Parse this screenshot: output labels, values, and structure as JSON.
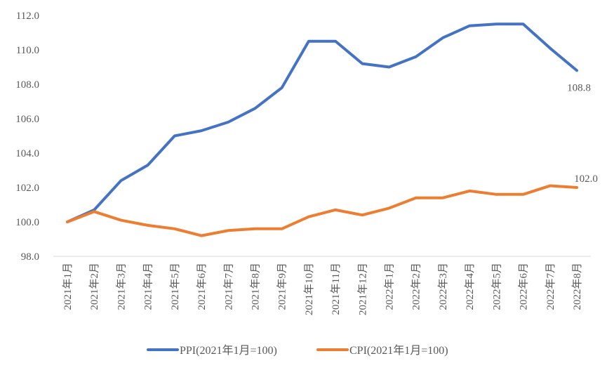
{
  "chart_data": {
    "type": "line",
    "title": "",
    "xlabel": "",
    "ylabel": "",
    "ylim": [
      98,
      112
    ],
    "ytick_step": 2,
    "ytick_labels": [
      "98.0",
      "100.0",
      "102.0",
      "104.0",
      "106.0",
      "108.0",
      "110.0",
      "112.0"
    ],
    "grid": false,
    "legend_position": "bottom",
    "categories": [
      "2021年1月",
      "2021年2月",
      "2021年3月",
      "2021年4月",
      "2021年5月",
      "2021年6月",
      "2021年7月",
      "2021年8月",
      "2021年9月",
      "2021年10月",
      "2021年11月",
      "2021年12月",
      "2022年1月",
      "2022年2月",
      "2022年3月",
      "2022年4月",
      "2022年5月",
      "2022年6月",
      "2022年7月",
      "2022年8月"
    ],
    "series": [
      {
        "name": "PPI(2021年1月=100)",
        "color": "#4472C4",
        "values": [
          100.0,
          100.7,
          102.4,
          103.3,
          105.0,
          105.3,
          105.8,
          106.6,
          107.8,
          110.5,
          110.5,
          109.2,
          109.0,
          109.6,
          110.7,
          111.4,
          111.5,
          111.5,
          110.1,
          108.8
        ],
        "end_label": "108.8"
      },
      {
        "name": "CPI(2021年1月=100)",
        "color": "#ED7D31",
        "values": [
          100.0,
          100.6,
          100.1,
          99.8,
          99.6,
          99.2,
          99.5,
          99.6,
          99.6,
          100.3,
          100.7,
          100.4,
          100.8,
          101.4,
          101.4,
          101.8,
          101.6,
          101.6,
          102.1,
          102.0
        ],
        "end_label": "102.0"
      }
    ]
  }
}
